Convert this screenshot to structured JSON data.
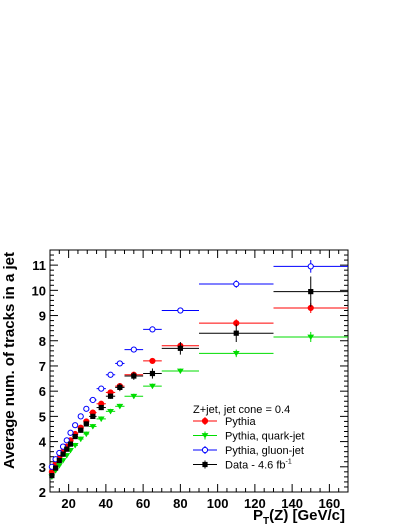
{
  "chart_data": {
    "type": "scatter",
    "title": "",
    "xlabel_main": "P",
    "xlabel_sub": "T",
    "xlabel_rest": "(Z) [GeV/c]",
    "ylabel": "Average num. of tracks in a jet",
    "xlim": [
      10,
      170
    ],
    "ylim": [
      2,
      11.6
    ],
    "x_ticks": [
      "20",
      "40",
      "60",
      "80",
      "100",
      "120",
      "140",
      "160"
    ],
    "y_ticks": [
      "2",
      "3",
      "4",
      "5",
      "6",
      "7",
      "8",
      "9",
      "10",
      "11"
    ],
    "grid": false,
    "legend_title": "Z+jet, jet cone = 0.4",
    "legend_position": "center-right",
    "series": [
      {
        "name": "Pythia",
        "color": "#ff0000",
        "marker": "filled-circle",
        "points": [
          {
            "x": 11,
            "y": 2.8,
            "xlo": 10,
            "xhi": 12,
            "err": 0.1
          },
          {
            "x": 13,
            "y": 3.1,
            "xlo": 12,
            "xhi": 14,
            "err": 0.1
          },
          {
            "x": 15,
            "y": 3.35,
            "xlo": 14,
            "xhi": 16,
            "err": 0.1
          },
          {
            "x": 17,
            "y": 3.6,
            "xlo": 16,
            "xhi": 18,
            "err": 0.1
          },
          {
            "x": 19,
            "y": 3.8,
            "xlo": 18,
            "xhi": 20,
            "err": 0.1
          },
          {
            "x": 21,
            "y": 4.05,
            "xlo": 20,
            "xhi": 22,
            "err": 0.1
          },
          {
            "x": 23.5,
            "y": 4.3,
            "xlo": 22,
            "xhi": 25,
            "err": 0.1
          },
          {
            "x": 26.5,
            "y": 4.55,
            "xlo": 25,
            "xhi": 28,
            "err": 0.1
          },
          {
            "x": 29.5,
            "y": 4.8,
            "xlo": 28,
            "xhi": 31,
            "err": 0.1
          },
          {
            "x": 33,
            "y": 5.15,
            "xlo": 31,
            "xhi": 35,
            "err": 0.1
          },
          {
            "x": 37.5,
            "y": 5.5,
            "xlo": 35,
            "xhi": 40,
            "err": 0.1
          },
          {
            "x": 42.5,
            "y": 5.95,
            "xlo": 40,
            "xhi": 45,
            "err": 0.1
          },
          {
            "x": 47.5,
            "y": 6.2,
            "xlo": 45,
            "xhi": 50,
            "err": 0.1
          },
          {
            "x": 55,
            "y": 6.65,
            "xlo": 50,
            "xhi": 60,
            "err": 0.1
          },
          {
            "x": 65,
            "y": 7.2,
            "xlo": 60,
            "xhi": 70,
            "err": 0.1
          },
          {
            "x": 80,
            "y": 7.8,
            "xlo": 70,
            "xhi": 90,
            "err": 0.1
          },
          {
            "x": 110,
            "y": 8.7,
            "xlo": 90,
            "xhi": 130,
            "err": 0.15
          },
          {
            "x": 150,
            "y": 9.3,
            "xlo": 130,
            "xhi": 170,
            "err": 0.2
          }
        ]
      },
      {
        "name": "Pythia, quark-jet",
        "color": "#00dd00",
        "marker": "filled-triangle-down",
        "points": [
          {
            "x": 11,
            "y": 2.6,
            "xlo": 10,
            "xhi": 12,
            "err": 0.1
          },
          {
            "x": 13,
            "y": 2.85,
            "xlo": 12,
            "xhi": 14,
            "err": 0.1
          },
          {
            "x": 15,
            "y": 3.05,
            "xlo": 14,
            "xhi": 16,
            "err": 0.1
          },
          {
            "x": 17,
            "y": 3.25,
            "xlo": 16,
            "xhi": 18,
            "err": 0.1
          },
          {
            "x": 19,
            "y": 3.45,
            "xlo": 18,
            "xhi": 20,
            "err": 0.1
          },
          {
            "x": 21,
            "y": 3.65,
            "xlo": 20,
            "xhi": 22,
            "err": 0.1
          },
          {
            "x": 23.5,
            "y": 3.85,
            "xlo": 22,
            "xhi": 25,
            "err": 0.1
          },
          {
            "x": 26.5,
            "y": 4.1,
            "xlo": 25,
            "xhi": 28,
            "err": 0.1
          },
          {
            "x": 29.5,
            "y": 4.3,
            "xlo": 28,
            "xhi": 31,
            "err": 0.1
          },
          {
            "x": 33,
            "y": 4.6,
            "xlo": 31,
            "xhi": 35,
            "err": 0.1
          },
          {
            "x": 37.5,
            "y": 4.9,
            "xlo": 35,
            "xhi": 40,
            "err": 0.1
          },
          {
            "x": 42.5,
            "y": 5.2,
            "xlo": 40,
            "xhi": 45,
            "err": 0.1
          },
          {
            "x": 47.5,
            "y": 5.4,
            "xlo": 45,
            "xhi": 50,
            "err": 0.1
          },
          {
            "x": 55,
            "y": 5.8,
            "xlo": 50,
            "xhi": 60,
            "err": 0.1
          },
          {
            "x": 65,
            "y": 6.2,
            "xlo": 60,
            "xhi": 70,
            "err": 0.1
          },
          {
            "x": 80,
            "y": 6.8,
            "xlo": 70,
            "xhi": 90,
            "err": 0.1
          },
          {
            "x": 110,
            "y": 7.5,
            "xlo": 90,
            "xhi": 130,
            "err": 0.15
          },
          {
            "x": 150,
            "y": 8.15,
            "xlo": 130,
            "xhi": 170,
            "err": 0.2
          }
        ]
      },
      {
        "name": "Pythia, gluon-jet",
        "color": "#0000ff",
        "marker": "open-circle",
        "points": [
          {
            "x": 11,
            "y": 3.0,
            "xlo": 10,
            "xhi": 12,
            "err": 0.1
          },
          {
            "x": 13,
            "y": 3.3,
            "xlo": 12,
            "xhi": 14,
            "err": 0.1
          },
          {
            "x": 15,
            "y": 3.55,
            "xlo": 14,
            "xhi": 16,
            "err": 0.1
          },
          {
            "x": 17,
            "y": 3.8,
            "xlo": 16,
            "xhi": 18,
            "err": 0.1
          },
          {
            "x": 19,
            "y": 4.05,
            "xlo": 18,
            "xhi": 20,
            "err": 0.1
          },
          {
            "x": 21,
            "y": 4.35,
            "xlo": 20,
            "xhi": 22,
            "err": 0.1
          },
          {
            "x": 23.5,
            "y": 4.65,
            "xlo": 22,
            "xhi": 25,
            "err": 0.1
          },
          {
            "x": 26.5,
            "y": 5.0,
            "xlo": 25,
            "xhi": 28,
            "err": 0.1
          },
          {
            "x": 29.5,
            "y": 5.3,
            "xlo": 28,
            "xhi": 31,
            "err": 0.1
          },
          {
            "x": 33,
            "y": 5.65,
            "xlo": 31,
            "xhi": 35,
            "err": 0.1
          },
          {
            "x": 37.5,
            "y": 6.1,
            "xlo": 35,
            "xhi": 40,
            "err": 0.1
          },
          {
            "x": 42.5,
            "y": 6.65,
            "xlo": 40,
            "xhi": 45,
            "err": 0.1
          },
          {
            "x": 47.5,
            "y": 7.1,
            "xlo": 45,
            "xhi": 50,
            "err": 0.1
          },
          {
            "x": 55,
            "y": 7.65,
            "xlo": 50,
            "xhi": 60,
            "err": 0.1
          },
          {
            "x": 65,
            "y": 8.45,
            "xlo": 60,
            "xhi": 70,
            "err": 0.1
          },
          {
            "x": 80,
            "y": 9.2,
            "xlo": 70,
            "xhi": 90,
            "err": 0.1
          },
          {
            "x": 110,
            "y": 10.25,
            "xlo": 90,
            "xhi": 130,
            "err": 0.15
          },
          {
            "x": 150,
            "y": 10.95,
            "xlo": 130,
            "xhi": 170,
            "err": 0.25
          }
        ]
      },
      {
        "name": "Data - 4.6 fb",
        "name_sup": "-1",
        "color": "#000000",
        "marker": "filled-square",
        "points": [
          {
            "x": 11,
            "y": 2.65,
            "xlo": 10,
            "xhi": 12,
            "err": 0.1
          },
          {
            "x": 13,
            "y": 2.95,
            "xlo": 12,
            "xhi": 14,
            "err": 0.1
          },
          {
            "x": 15,
            "y": 3.25,
            "xlo": 14,
            "xhi": 16,
            "err": 0.1
          },
          {
            "x": 17,
            "y": 3.5,
            "xlo": 16,
            "xhi": 18,
            "err": 0.1
          },
          {
            "x": 19,
            "y": 3.7,
            "xlo": 18,
            "xhi": 20,
            "err": 0.1
          },
          {
            "x": 21,
            "y": 3.9,
            "xlo": 20,
            "xhi": 22,
            "err": 0.1
          },
          {
            "x": 23.5,
            "y": 4.2,
            "xlo": 22,
            "xhi": 25,
            "err": 0.1
          },
          {
            "x": 26.5,
            "y": 4.45,
            "xlo": 25,
            "xhi": 28,
            "err": 0.1
          },
          {
            "x": 29.5,
            "y": 4.7,
            "xlo": 28,
            "xhi": 31,
            "err": 0.1
          },
          {
            "x": 33,
            "y": 5.0,
            "xlo": 31,
            "xhi": 35,
            "err": 0.1
          },
          {
            "x": 37.5,
            "y": 5.35,
            "xlo": 35,
            "xhi": 40,
            "err": 0.1
          },
          {
            "x": 42.5,
            "y": 5.8,
            "xlo": 40,
            "xhi": 45,
            "err": 0.1
          },
          {
            "x": 47.5,
            "y": 6.15,
            "xlo": 45,
            "xhi": 50,
            "err": 0.15
          },
          {
            "x": 55,
            "y": 6.6,
            "xlo": 50,
            "xhi": 60,
            "err": 0.15
          },
          {
            "x": 65,
            "y": 6.7,
            "xlo": 60,
            "xhi": 70,
            "err": 0.2
          },
          {
            "x": 80,
            "y": 7.7,
            "xlo": 70,
            "xhi": 90,
            "err": 0.25
          },
          {
            "x": 110,
            "y": 8.3,
            "xlo": 90,
            "xhi": 130,
            "err": 0.35
          },
          {
            "x": 150,
            "y": 9.95,
            "xlo": 130,
            "xhi": 170,
            "err": 0.6
          }
        ]
      }
    ]
  }
}
